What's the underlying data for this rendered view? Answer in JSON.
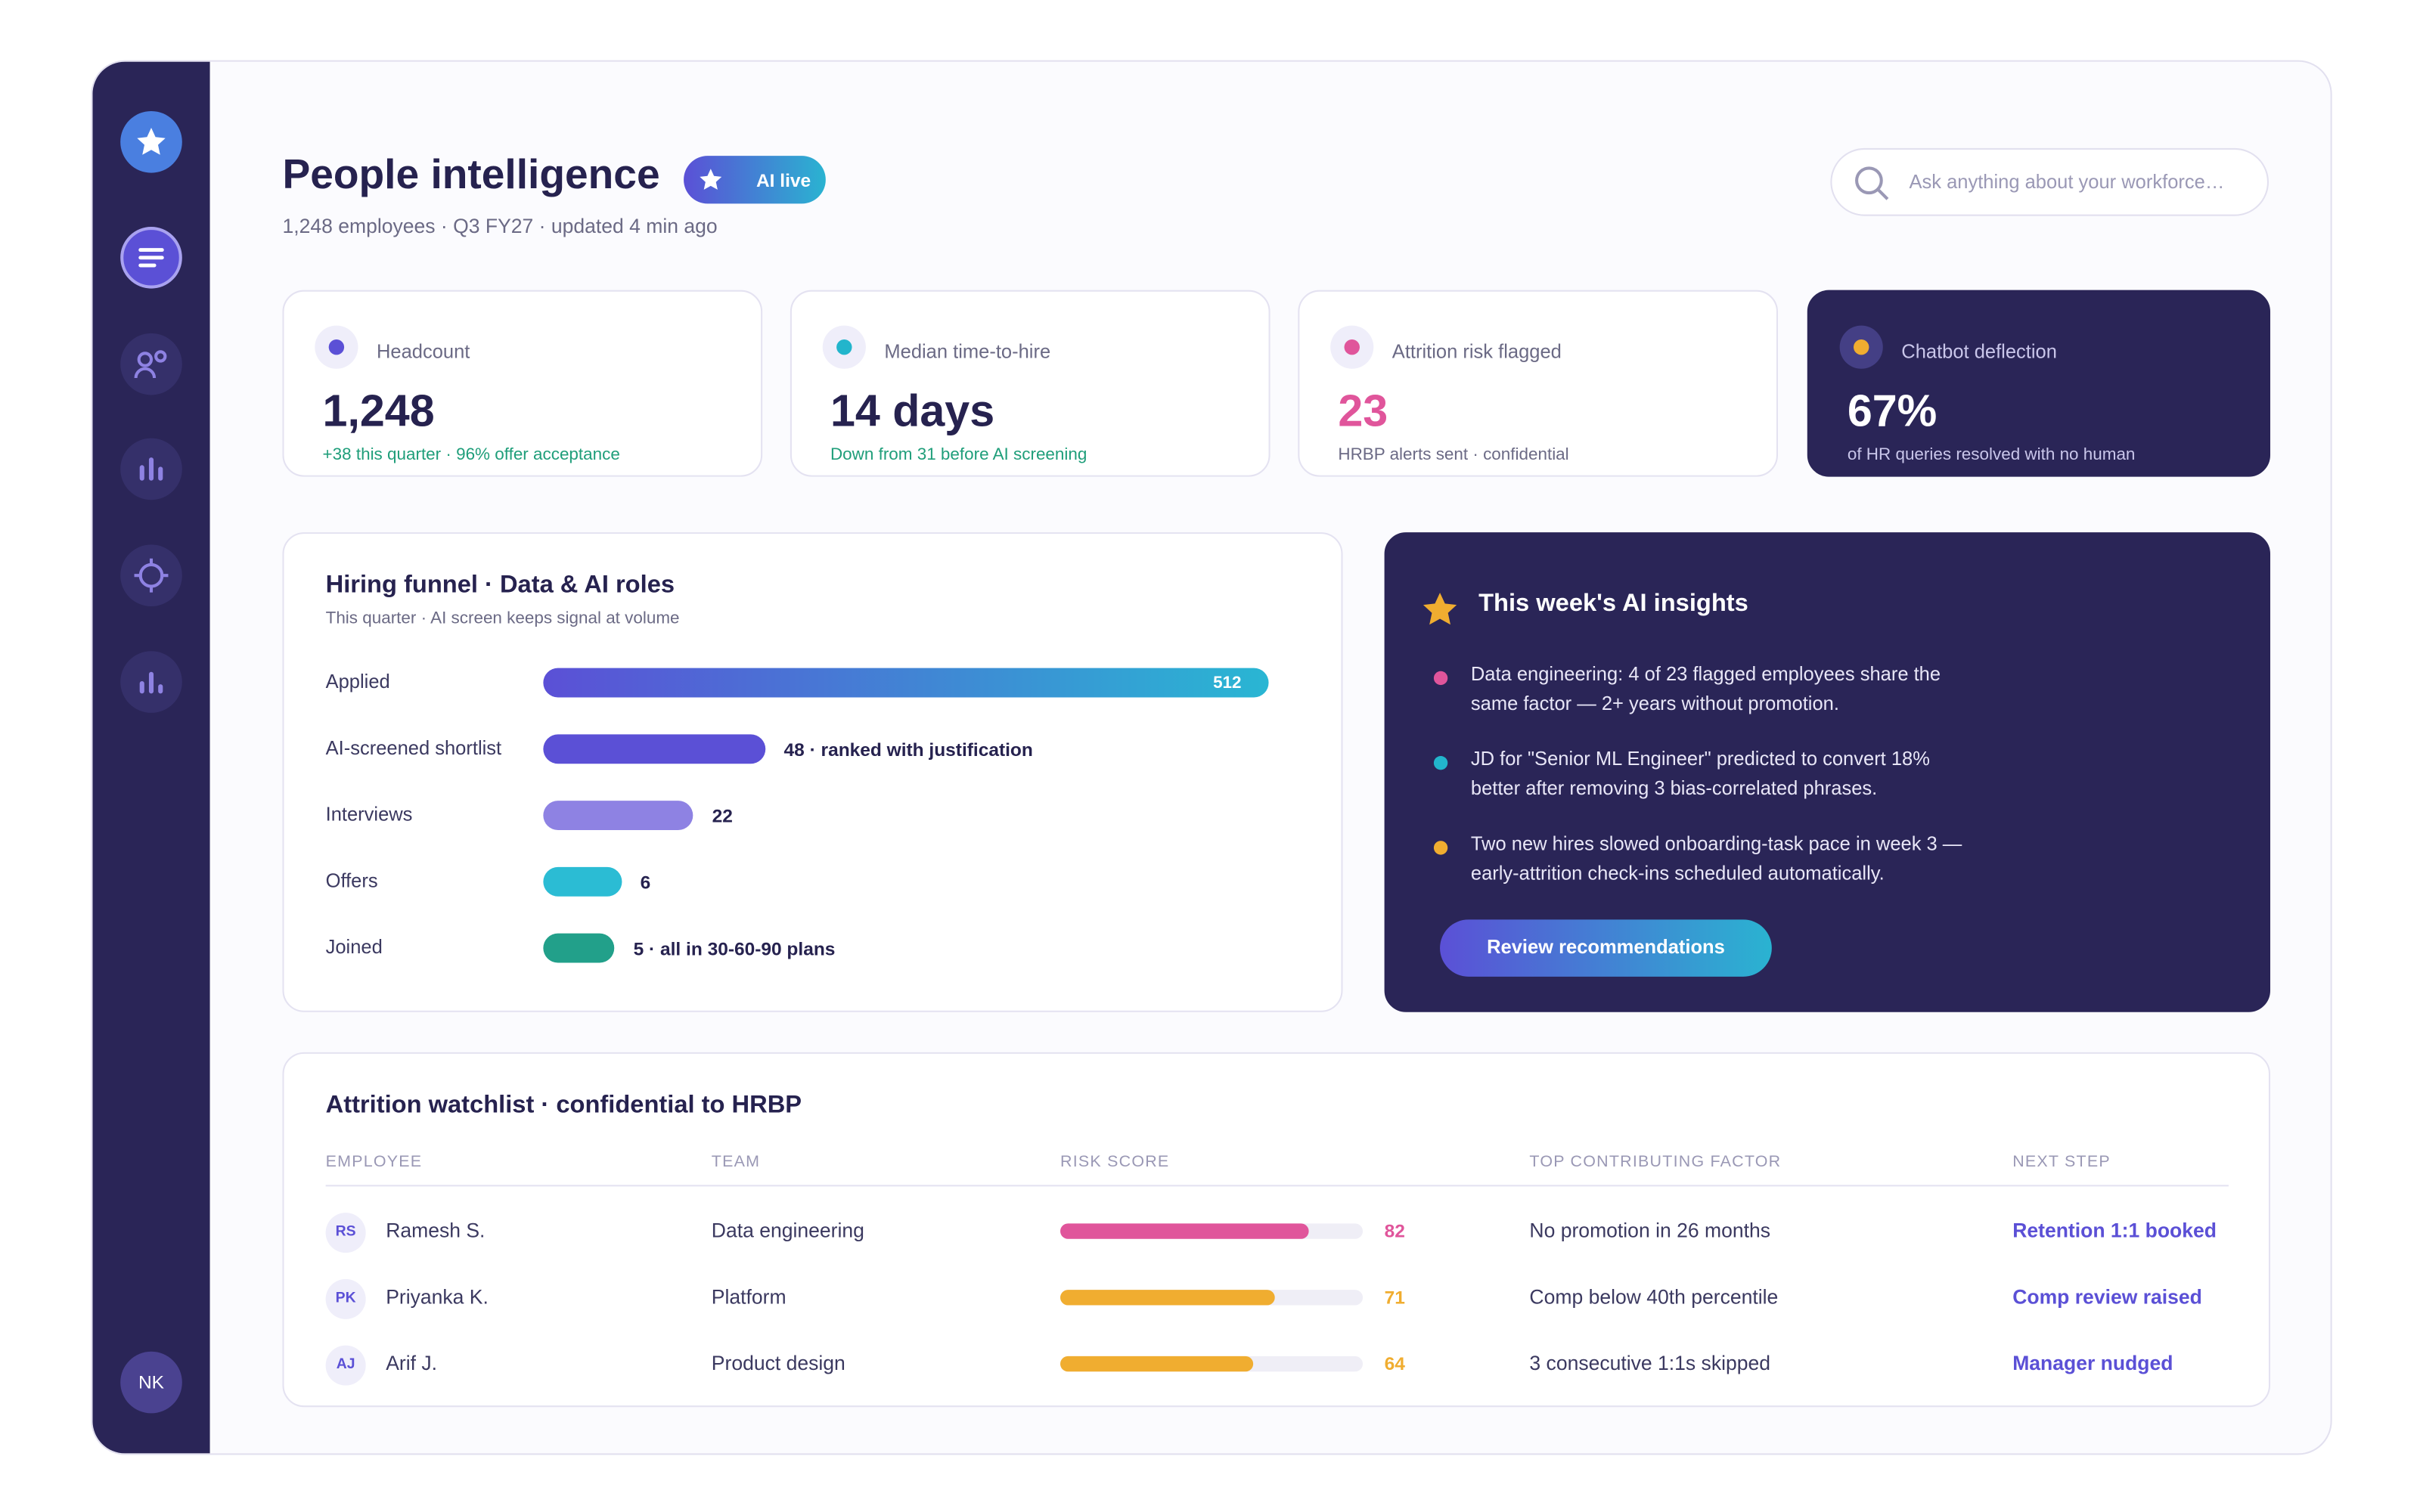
{
  "sidebar": {
    "avatar": "NK"
  },
  "header": {
    "title": "People intelligence",
    "badge": "AI live",
    "subtitle": "1,248 employees · Q3 FY27 · updated 4 min ago",
    "search_placeholder": "Ask anything about your workforce…"
  },
  "kpis": [
    {
      "label": "Headcount",
      "value": "1,248",
      "note": "+38 this quarter · 96% offer acceptance"
    },
    {
      "label": "Median time-to-hire",
      "value": "14 days",
      "note": "Down from 31 before AI screening"
    },
    {
      "label": "Attrition risk flagged",
      "value": "23",
      "note": "HRBP alerts sent · confidential"
    },
    {
      "label": "Chatbot deflection",
      "value": "67%",
      "note": "of HR queries resolved with no human"
    }
  ],
  "funnel": {
    "title": "Hiring funnel · Data & AI roles",
    "subtitle": "This quarter · AI screen keeps signal at volume",
    "stages": [
      "Applied",
      "AI-screened shortlist",
      "Interviews",
      "Offers",
      "Joined"
    ],
    "values": [
      512,
      48,
      22,
      6,
      5
    ],
    "value_labels": [
      "512",
      "48 · ranked with justification",
      "22",
      "6",
      "5 · all in 30-60-90 plans"
    ],
    "colors": [
      "#5b50d6",
      "#5b50d6",
      "#8e82e3",
      "#2bbcd4",
      "#22a08a"
    ]
  },
  "insights": {
    "title": "This week's AI insights",
    "items": [
      "Data engineering: 4 of 23 flagged employees share the same factor — 2+ years without promotion.",
      "JD for \"Senior ML Engineer\" predicted to convert 18% better after removing 3 bias-correlated phrases.",
      "Two new hires slowed onboarding-task pace in week 3 — early-attrition check-ins scheduled automatically."
    ],
    "button": "Review recommendations"
  },
  "watchlist": {
    "title": "Attrition watchlist · confidential to HRBP",
    "columns": [
      "EMPLOYEE",
      "TEAM",
      "RISK SCORE",
      "TOP CONTRIBUTING FACTOR",
      "NEXT STEP"
    ],
    "risk_max": 100,
    "rows": [
      {
        "initials": "RS",
        "name": "Ramesh S.",
        "team": "Data engineering",
        "risk": 82,
        "color": "#e0559b",
        "factor": "No promotion in 26 months",
        "next_step": "Retention 1:1 booked"
      },
      {
        "initials": "PK",
        "name": "Priyanka K.",
        "team": "Platform",
        "risk": 71,
        "color": "#f0ad30",
        "factor": "Comp below 40th percentile",
        "next_step": "Comp review raised"
      },
      {
        "initials": "AJ",
        "name": "Arif J.",
        "team": "Product design",
        "risk": 64,
        "color": "#f0ad30",
        "factor": "3 consecutive 1:1s skipped",
        "next_step": "Manager nudged"
      }
    ]
  }
}
